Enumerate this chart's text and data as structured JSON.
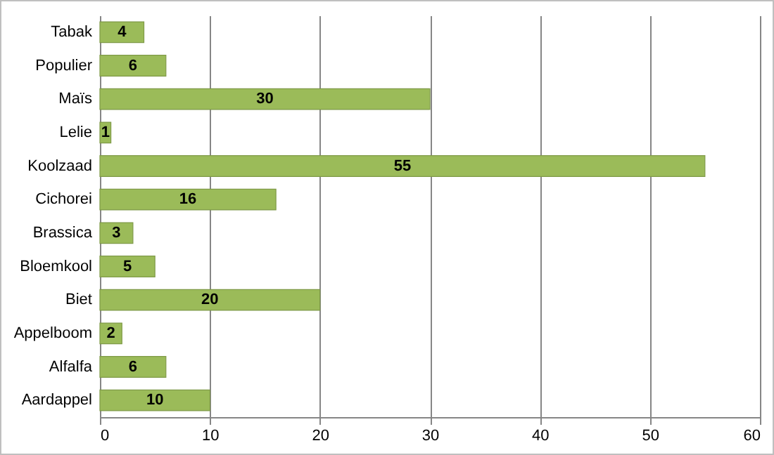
{
  "chart_data": {
    "type": "bar",
    "orientation": "horizontal",
    "categories": [
      "Tabak",
      "Populier",
      "Maïs",
      "Lelie",
      "Koolzaad",
      "Cichorei",
      "Brassica",
      "Bloemkool",
      "Biet",
      "Appelboom",
      "Alfalfa",
      "Aardappel"
    ],
    "values": [
      4,
      6,
      30,
      1,
      55,
      16,
      3,
      5,
      20,
      2,
      6,
      10
    ],
    "color": "#9bbb59",
    "xlim": [
      0,
      60
    ],
    "xticks": [
      0,
      10,
      20,
      30,
      40,
      50,
      60
    ],
    "grid": "x",
    "data_labels": true
  }
}
